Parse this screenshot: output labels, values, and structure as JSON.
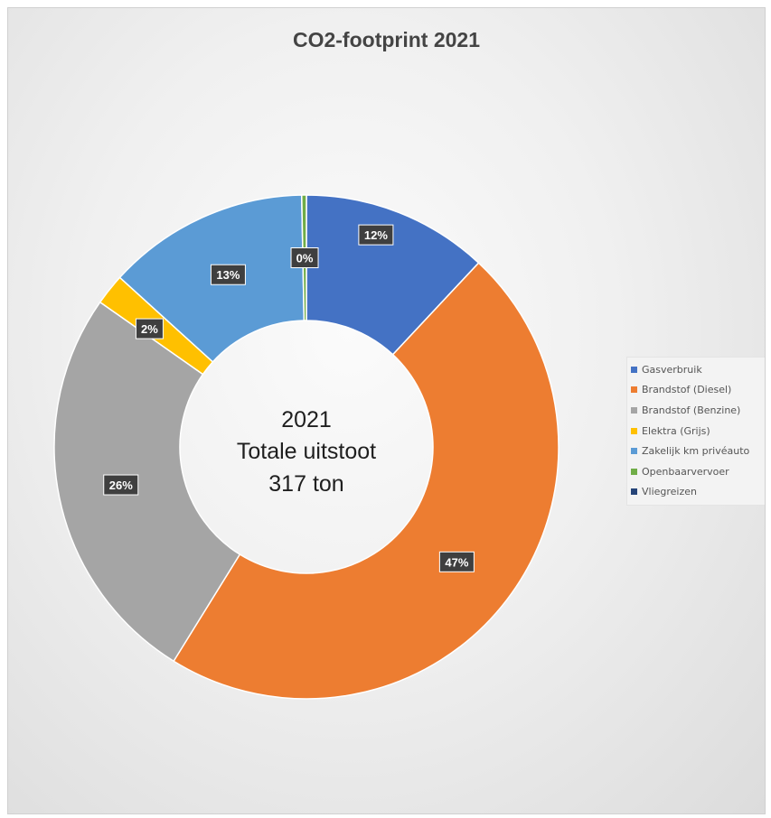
{
  "chart_data": {
    "type": "pie",
    "title": "CO2-footprint 2021",
    "center_label": [
      "2021",
      "Totale uitstoot",
      "317 ton"
    ],
    "slices": [
      {
        "name": "Gasverbruik",
        "value": 12,
        "label": "12%",
        "color": "#4472c4"
      },
      {
        "name": "Brandstof (Diesel)",
        "value": 47,
        "label": "47%",
        "color": "#ed7d31"
      },
      {
        "name": "Brandstof (Benzine)",
        "value": 26,
        "label": "26%",
        "color": "#a5a5a5"
      },
      {
        "name": "Elektra (Grijs)",
        "value": 2,
        "label": "2%",
        "color": "#ffc000"
      },
      {
        "name": "Zakelijk km privéauto",
        "value": 13,
        "label": "13%",
        "color": "#5b9bd5"
      },
      {
        "name": "Openbaarvervoer",
        "value": 0.3,
        "label": "0%",
        "color": "#70ad47"
      },
      {
        "name": "Vliegreizen",
        "value": 0,
        "label": "",
        "color": "#264478"
      }
    ],
    "legend_position": "right"
  }
}
